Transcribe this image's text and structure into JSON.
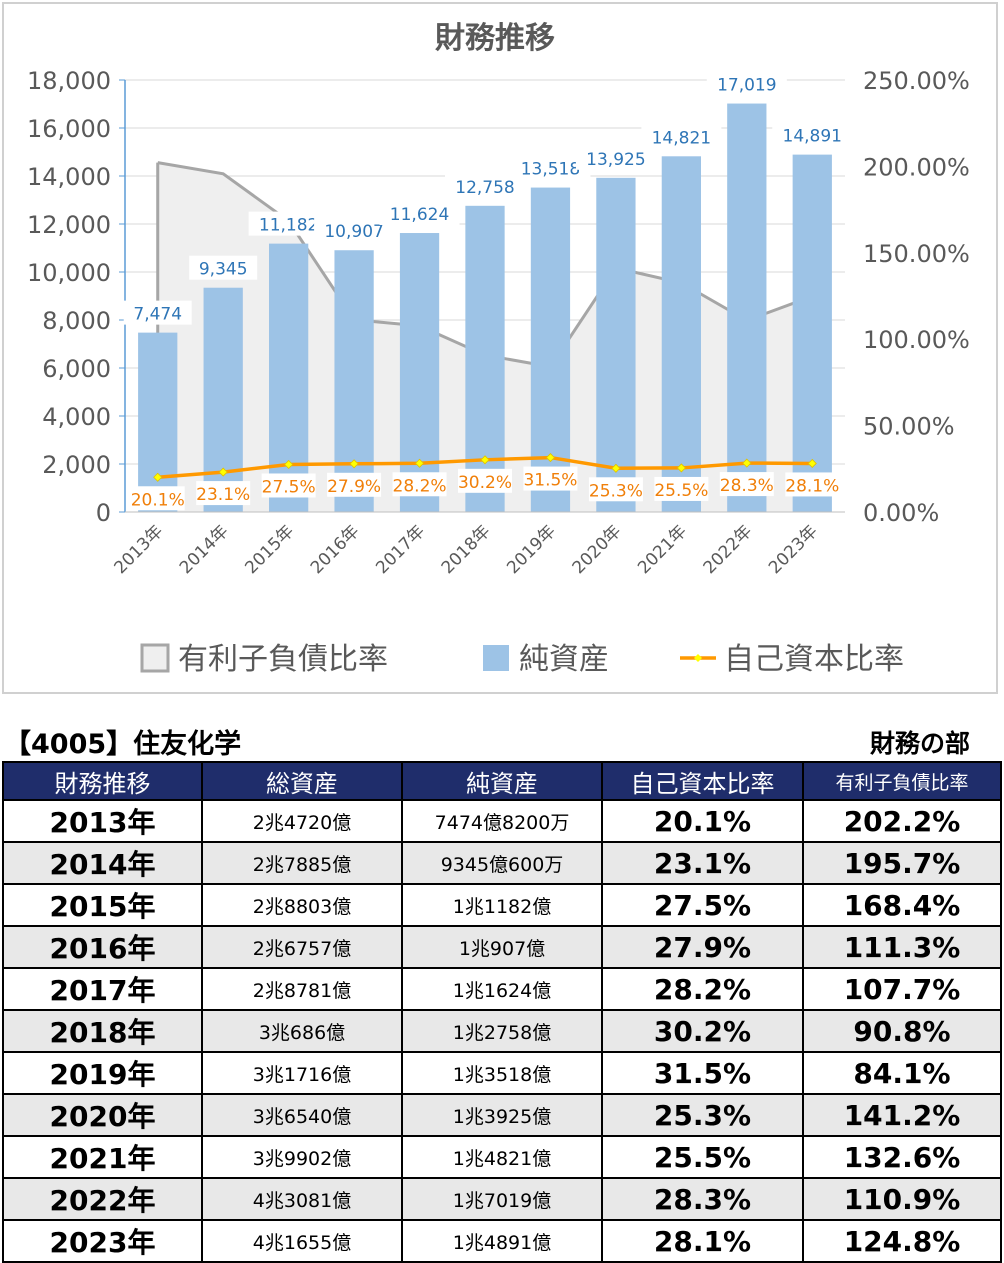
{
  "chart_data": {
    "type": "bar",
    "title": "財務推移",
    "categories": [
      "2013年",
      "2014年",
      "2015年",
      "2016年",
      "2017年",
      "2018年",
      "2019年",
      "2020年",
      "2021年",
      "2022年",
      "2023年"
    ],
    "series": [
      {
        "name": "有利子負債比率",
        "kind": "area",
        "axis": "right",
        "values": [
          202.2,
          195.7,
          168.4,
          111.3,
          107.7,
          90.8,
          84.1,
          141.2,
          132.6,
          110.9,
          124.8
        ],
        "color": "#a6a6a6"
      },
      {
        "name": "純資産",
        "kind": "bar",
        "axis": "left",
        "values": [
          7474,
          9345,
          11182,
          10907,
          11624,
          12758,
          13518,
          13925,
          14821,
          17019,
          14891
        ],
        "labels": [
          "7,474",
          "9,345",
          "11,182",
          "10,907",
          "11,624",
          "12,758",
          "13,518",
          "13,925",
          "14,821",
          "17,019",
          "14,891"
        ],
        "color": "#9dc3e6"
      },
      {
        "name": "自己資本比率",
        "kind": "line",
        "axis": "right",
        "values": [
          20.1,
          23.1,
          27.5,
          27.9,
          28.2,
          30.2,
          31.5,
          25.3,
          25.5,
          28.3,
          28.1
        ],
        "labels": [
          "20.1%",
          "23.1%",
          "27.5%",
          "27.9%",
          "28.2%",
          "30.2%",
          "31.5%",
          "25.3%",
          "25.5%",
          "28.3%",
          "28.1%"
        ],
        "color": "#ff9900"
      }
    ],
    "y_left": {
      "min": 0,
      "max": 18000,
      "ticks": [
        "0",
        "2,000",
        "4,000",
        "6,000",
        "8,000",
        "10,000",
        "12,000",
        "14,000",
        "16,000",
        "18,000"
      ]
    },
    "y_right": {
      "min": 0,
      "max": 250,
      "ticks": [
        "0.00%",
        "50.00%",
        "100.00%",
        "150.00%",
        "200.00%",
        "250.00%"
      ]
    },
    "legend_position": "bottom",
    "grid": true
  },
  "heading": {
    "company": "【4005】住友化学",
    "section": "財務の部"
  },
  "table": {
    "headers": [
      "財務推移",
      "総資産",
      "純資産",
      "自己資本比率",
      "有利子負債比率"
    ],
    "rows": [
      [
        "2013年",
        "2兆4720億",
        "7474億8200万",
        "20.1%",
        "202.2%"
      ],
      [
        "2014年",
        "2兆7885億",
        "9345億600万",
        "23.1%",
        "195.7%"
      ],
      [
        "2015年",
        "2兆8803億",
        "1兆1182億",
        "27.5%",
        "168.4%"
      ],
      [
        "2016年",
        "2兆6757億",
        "1兆907億",
        "27.9%",
        "111.3%"
      ],
      [
        "2017年",
        "2兆8781億",
        "1兆1624億",
        "28.2%",
        "107.7%"
      ],
      [
        "2018年",
        "3兆686億",
        "1兆2758億",
        "30.2%",
        "90.8%"
      ],
      [
        "2019年",
        "3兆1716億",
        "1兆3518億",
        "31.5%",
        "84.1%"
      ],
      [
        "2020年",
        "3兆6540億",
        "1兆3925億",
        "25.3%",
        "141.2%"
      ],
      [
        "2021年",
        "3兆9902億",
        "1兆4821億",
        "25.5%",
        "132.6%"
      ],
      [
        "2022年",
        "4兆3081億",
        "1兆7019億",
        "28.3%",
        "110.9%"
      ],
      [
        "2023年",
        "4兆1655億",
        "1兆4891億",
        "28.1%",
        "124.8%"
      ]
    ]
  }
}
